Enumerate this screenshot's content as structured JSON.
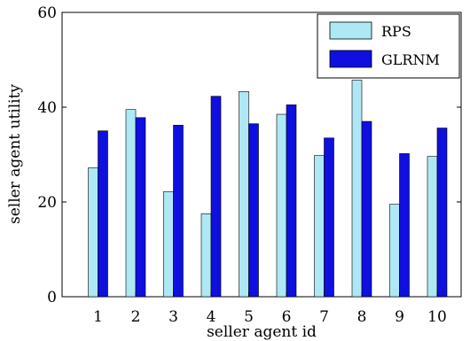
{
  "chart_data": {
    "type": "bar",
    "title": "",
    "xlabel": "seller agent id",
    "ylabel": "seller agent utility",
    "categories": [
      "1",
      "2",
      "3",
      "4",
      "5",
      "6",
      "7",
      "8",
      "9",
      "10"
    ],
    "ylim": [
      0,
      60
    ],
    "yticks": [
      "0",
      "20",
      "40",
      "60"
    ],
    "grid": false,
    "legend_position": "top-right",
    "series": [
      {
        "name": "RPS",
        "color": "#aee8f4",
        "values": [
          27.2,
          39.5,
          22.2,
          17.5,
          43.3,
          38.5,
          29.8,
          45.7,
          19.5,
          29.6
        ]
      },
      {
        "name": "GLRNM",
        "color": "#0f0fe0",
        "values": [
          35.0,
          37.8,
          36.2,
          42.3,
          36.5,
          40.5,
          33.5,
          37.0,
          30.2,
          35.6
        ]
      }
    ]
  }
}
